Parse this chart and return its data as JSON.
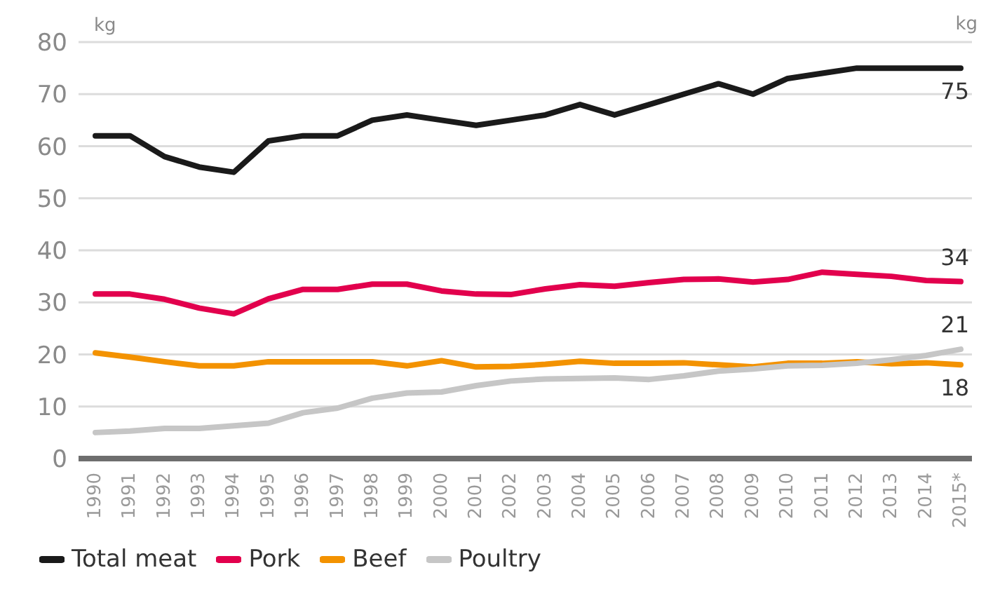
{
  "chart_data": {
    "type": "line",
    "ylabel": "kg",
    "annotations": [
      "kg"
    ],
    "categories": [
      "1990",
      "1991",
      "1992",
      "1993",
      "1994",
      "1995",
      "1996",
      "1997",
      "1998",
      "1999",
      "2000",
      "2001",
      "2002",
      "2003",
      "2004",
      "2005",
      "2006",
      "2007",
      "2008",
      "2009",
      "2010",
      "2011",
      "2012",
      "2013",
      "2014",
      "2015*"
    ],
    "series": [
      {
        "name": "Total meat",
        "color": "#1a1a1a",
        "values": [
          62,
          62,
          58,
          56,
          55,
          61,
          62,
          62,
          65,
          66,
          65,
          64,
          65,
          66,
          68,
          66,
          68,
          70,
          72,
          70,
          73,
          74,
          75,
          75,
          75,
          75
        ],
        "value_labels": [
          null,
          null,
          null,
          null,
          null,
          null,
          null,
          null,
          null,
          null,
          null,
          null,
          null,
          null,
          null,
          null,
          null,
          null,
          null,
          null,
          null,
          null,
          null,
          null,
          null,
          "75"
        ]
      },
      {
        "name": "Pork",
        "color": "#e2004d",
        "values": [
          31.6,
          31.6,
          30.6,
          28.9,
          27.8,
          30.7,
          32.5,
          32.5,
          33.5,
          33.5,
          32.2,
          31.6,
          31.5,
          32.6,
          33.4,
          33.1,
          33.8,
          34.4,
          34.5,
          33.9,
          34.4,
          35.8,
          35.4,
          35,
          34.2,
          34
        ],
        "value_labels": [
          null,
          null,
          null,
          null,
          null,
          null,
          null,
          null,
          null,
          null,
          null,
          null,
          null,
          null,
          null,
          null,
          null,
          null,
          null,
          null,
          null,
          null,
          null,
          null,
          null,
          "34"
        ]
      },
      {
        "name": "Beef",
        "color": "#f39200",
        "values": [
          20.3,
          19.5,
          18.6,
          17.8,
          17.8,
          18.6,
          18.6,
          18.6,
          18.6,
          17.8,
          18.8,
          17.6,
          17.7,
          18.1,
          18.7,
          18.3,
          18.3,
          18.4,
          18,
          17.6,
          18.3,
          18.3,
          18.6,
          18.2,
          18.4,
          18
        ],
        "value_labels": [
          null,
          null,
          null,
          null,
          null,
          null,
          null,
          null,
          null,
          null,
          null,
          null,
          null,
          null,
          null,
          null,
          null,
          null,
          null,
          null,
          null,
          null,
          null,
          null,
          null,
          "18"
        ]
      },
      {
        "name": "Poultry",
        "color": "#c6c6c6",
        "values": [
          5,
          5.3,
          5.8,
          5.8,
          6.3,
          6.8,
          8.8,
          9.7,
          11.6,
          12.6,
          12.8,
          14,
          14.9,
          15.3,
          15.4,
          15.5,
          15.2,
          15.9,
          16.8,
          17.2,
          17.8,
          17.9,
          18.3,
          19,
          19.8,
          21
        ],
        "value_labels": [
          null,
          null,
          null,
          null,
          null,
          null,
          null,
          null,
          null,
          null,
          null,
          null,
          null,
          null,
          null,
          null,
          null,
          null,
          null,
          null,
          null,
          null,
          null,
          null,
          null,
          "21"
        ]
      }
    ],
    "ylim": [
      0,
      80
    ],
    "yticks": [
      0,
      10,
      20,
      30,
      40,
      50,
      60,
      70,
      80
    ],
    "grid": "y",
    "legend": "bottom left",
    "marker": "none",
    "line_style": "solid"
  }
}
